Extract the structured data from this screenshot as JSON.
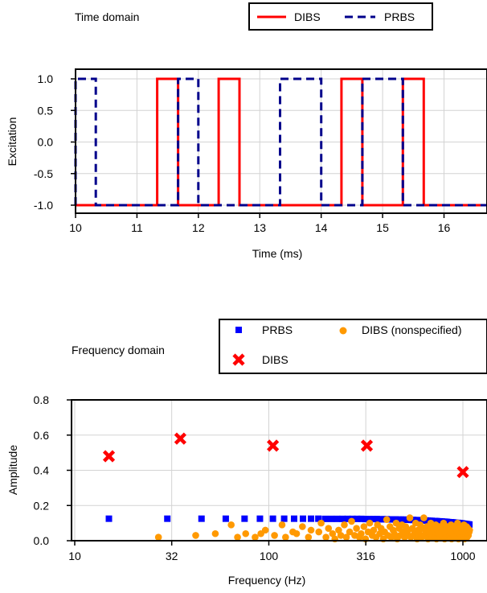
{
  "chart_data": [
    {
      "type": "line",
      "panel_label": "Time domain",
      "xlabel": "Time (ms)",
      "ylabel": "Excitation",
      "xlim": [
        10,
        16.7
      ],
      "ylim": [
        -1.1,
        1.1
      ],
      "xticks": [
        10,
        11,
        12,
        13,
        14,
        15,
        16
      ],
      "xtick_labels": [
        "10",
        "11",
        "12",
        "13",
        "14",
        "15",
        "16"
      ],
      "yticks": [
        1.0,
        0.5,
        0.0,
        -0.5,
        -1.0
      ],
      "ytick_labels": [
        "1.0",
        "0.5",
        "0.0",
        "-0.5",
        "-1.0"
      ],
      "grid": true,
      "legend_position": "top-right",
      "series": [
        {
          "name": "DIBS",
          "color": "#ff0000",
          "style": "solid",
          "x": [
            10,
            11.33,
            11.33,
            11.67,
            11.67,
            12.33,
            12.33,
            12.67,
            12.67,
            14.33,
            14.33,
            14.67,
            14.67,
            15.33,
            15.33,
            15.67,
            15.67,
            16.7
          ],
          "y": [
            -1,
            -1,
            1,
            1,
            -1,
            -1,
            1,
            1,
            -1,
            -1,
            1,
            1,
            -1,
            -1,
            1,
            1,
            -1,
            -1
          ]
        },
        {
          "name": "PRBS",
          "color": "#00008b",
          "style": "dashed",
          "x": [
            10,
            10,
            10.33,
            10.33,
            11.67,
            11.67,
            12,
            12,
            13.33,
            13.33,
            14,
            14,
            14.67,
            14.67,
            15.33,
            15.33,
            16.7
          ],
          "y": [
            -1,
            1,
            1,
            -1,
            -1,
            1,
            1,
            -1,
            -1,
            1,
            1,
            -1,
            -1,
            1,
            1,
            -1,
            -1
          ]
        }
      ]
    },
    {
      "type": "scatter",
      "panel_label": "Frequency domain",
      "xlabel": "Frequency (Hz)",
      "ylabel": "Amplitude",
      "xscale": "log",
      "xlim": [
        10,
        1100
      ],
      "ylim": [
        0,
        0.8
      ],
      "xticks": [
        10,
        31.6,
        100,
        316,
        1000
      ],
      "xtick_labels": [
        "10",
        "32",
        "100",
        "316",
        "1000"
      ],
      "yticks": [
        0.0,
        0.2,
        0.4,
        0.6,
        0.8
      ],
      "ytick_labels": [
        "0.0",
        "0.2",
        "0.4",
        "0.6",
        "0.8"
      ],
      "grid": true,
      "legend_position": "top-right",
      "series": [
        {
          "name": "PRBS",
          "marker": "square",
          "color": "#0000ff",
          "x": [
            15,
            30,
            45,
            60,
            75,
            90,
            105,
            120,
            135,
            150,
            165,
            180,
            195,
            210,
            225,
            240,
            255,
            270,
            285,
            300,
            315,
            330,
            345,
            360,
            375,
            390,
            405,
            420,
            435,
            450,
            465,
            480,
            495,
            510,
            525,
            540,
            555,
            570,
            585,
            600,
            615,
            630,
            645,
            660,
            675,
            690,
            705,
            720,
            735,
            750,
            765,
            780,
            795,
            810,
            825,
            840,
            855,
            870,
            885,
            900,
            915,
            930,
            945,
            960,
            975,
            990,
            1005,
            1020,
            1035,
            1050,
            1065,
            1080
          ],
          "y": [
            0.125,
            0.125,
            0.125,
            0.125,
            0.125,
            0.125,
            0.125,
            0.125,
            0.125,
            0.125,
            0.125,
            0.125,
            0.124,
            0.124,
            0.124,
            0.124,
            0.124,
            0.124,
            0.124,
            0.124,
            0.123,
            0.123,
            0.123,
            0.123,
            0.122,
            0.122,
            0.122,
            0.121,
            0.121,
            0.121,
            0.12,
            0.12,
            0.12,
            0.119,
            0.119,
            0.118,
            0.118,
            0.117,
            0.117,
            0.116,
            0.116,
            0.115,
            0.115,
            0.114,
            0.113,
            0.113,
            0.112,
            0.112,
            0.111,
            0.11,
            0.11,
            0.109,
            0.108,
            0.108,
            0.107,
            0.106,
            0.105,
            0.105,
            0.104,
            0.103,
            0.102,
            0.101,
            0.101,
            0.1,
            0.099,
            0.098,
            0.097,
            0.096,
            0.095,
            0.094,
            0.093,
            0.092
          ]
        },
        {
          "name": "DIBS (nonspecified)",
          "marker": "circle",
          "color": "#ff9900",
          "x": [
            27,
            42,
            53,
            64,
            69,
            76,
            85,
            91,
            96,
            107,
            117,
            122,
            133,
            139,
            149,
            160,
            165,
            181,
            186,
            197,
            203,
            213,
            219,
            229,
            235,
            245,
            251,
            261,
            267,
            277,
            283,
            293,
            299,
            309,
            315,
            325,
            331,
            341,
            347,
            357,
            363,
            373,
            379,
            389,
            395,
            405,
            411,
            421,
            427,
            437,
            443,
            453,
            459,
            469,
            475,
            485,
            491,
            501,
            507,
            517,
            523,
            533,
            539,
            549,
            555,
            565,
            571,
            581,
            587,
            597,
            603,
            613,
            619,
            629,
            635,
            645,
            651,
            661,
            667,
            677,
            683,
            693,
            699,
            709,
            715,
            725,
            731,
            741,
            747,
            757,
            763,
            773,
            779,
            789,
            795,
            805,
            811,
            821,
            827,
            837,
            843,
            853,
            859,
            869,
            875,
            885,
            891,
            901,
            907,
            917,
            923,
            933,
            939,
            949,
            955,
            965,
            971,
            981,
            987,
            997,
            1003,
            1013,
            1019,
            1029,
            1035,
            1045,
            1051,
            1061,
            1067,
            1077,
            1083
          ],
          "y": [
            0.02,
            0.03,
            0.04,
            0.09,
            0.02,
            0.04,
            0.02,
            0.04,
            0.06,
            0.03,
            0.09,
            0.02,
            0.05,
            0.04,
            0.08,
            0.02,
            0.06,
            0.05,
            0.1,
            0.02,
            0.07,
            0.04,
            0.01,
            0.06,
            0.03,
            0.09,
            0.02,
            0.05,
            0.11,
            0.03,
            0.07,
            0.02,
            0.04,
            0.08,
            0.01,
            0.05,
            0.1,
            0.03,
            0.06,
            0.02,
            0.09,
            0.04,
            0.07,
            0.01,
            0.05,
            0.12,
            0.03,
            0.08,
            0.02,
            0.06,
            0.04,
            0.1,
            0.01,
            0.07,
            0.03,
            0.09,
            0.05,
            0.02,
            0.08,
            0.04,
            0.06,
            0.13,
            0.02,
            0.07,
            0.03,
            0.05,
            0.1,
            0.01,
            0.06,
            0.04,
            0.09,
            0.02,
            0.07,
            0.13,
            0.03,
            0.05,
            0.08,
            0.01,
            0.06,
            0.04,
            0.1,
            0.02,
            0.07,
            0.03,
            0.05,
            0.09,
            0.01,
            0.06,
            0.04,
            0.08,
            0.02,
            0.07,
            0.03,
            0.05,
            0.1,
            0.01,
            0.06,
            0.04,
            0.08,
            0.02,
            0.07,
            0.03,
            0.05,
            0.09,
            0.01,
            0.06,
            0.04,
            0.08,
            0.02,
            0.07,
            0.03,
            0.05,
            0.1,
            0.01,
            0.06,
            0.04,
            0.08,
            0.02,
            0.07,
            0.03,
            0.05,
            0.09,
            0.01,
            0.06,
            0.04,
            0.08,
            0.02,
            0.07,
            0.03,
            0.05,
            0.06
          ]
        },
        {
          "name": "DIBS",
          "marker": "x",
          "color": "#ff0000",
          "x": [
            15,
            35,
            105,
            320,
            1000
          ],
          "y": [
            0.48,
            0.58,
            0.54,
            0.54,
            0.39
          ]
        }
      ]
    }
  ]
}
